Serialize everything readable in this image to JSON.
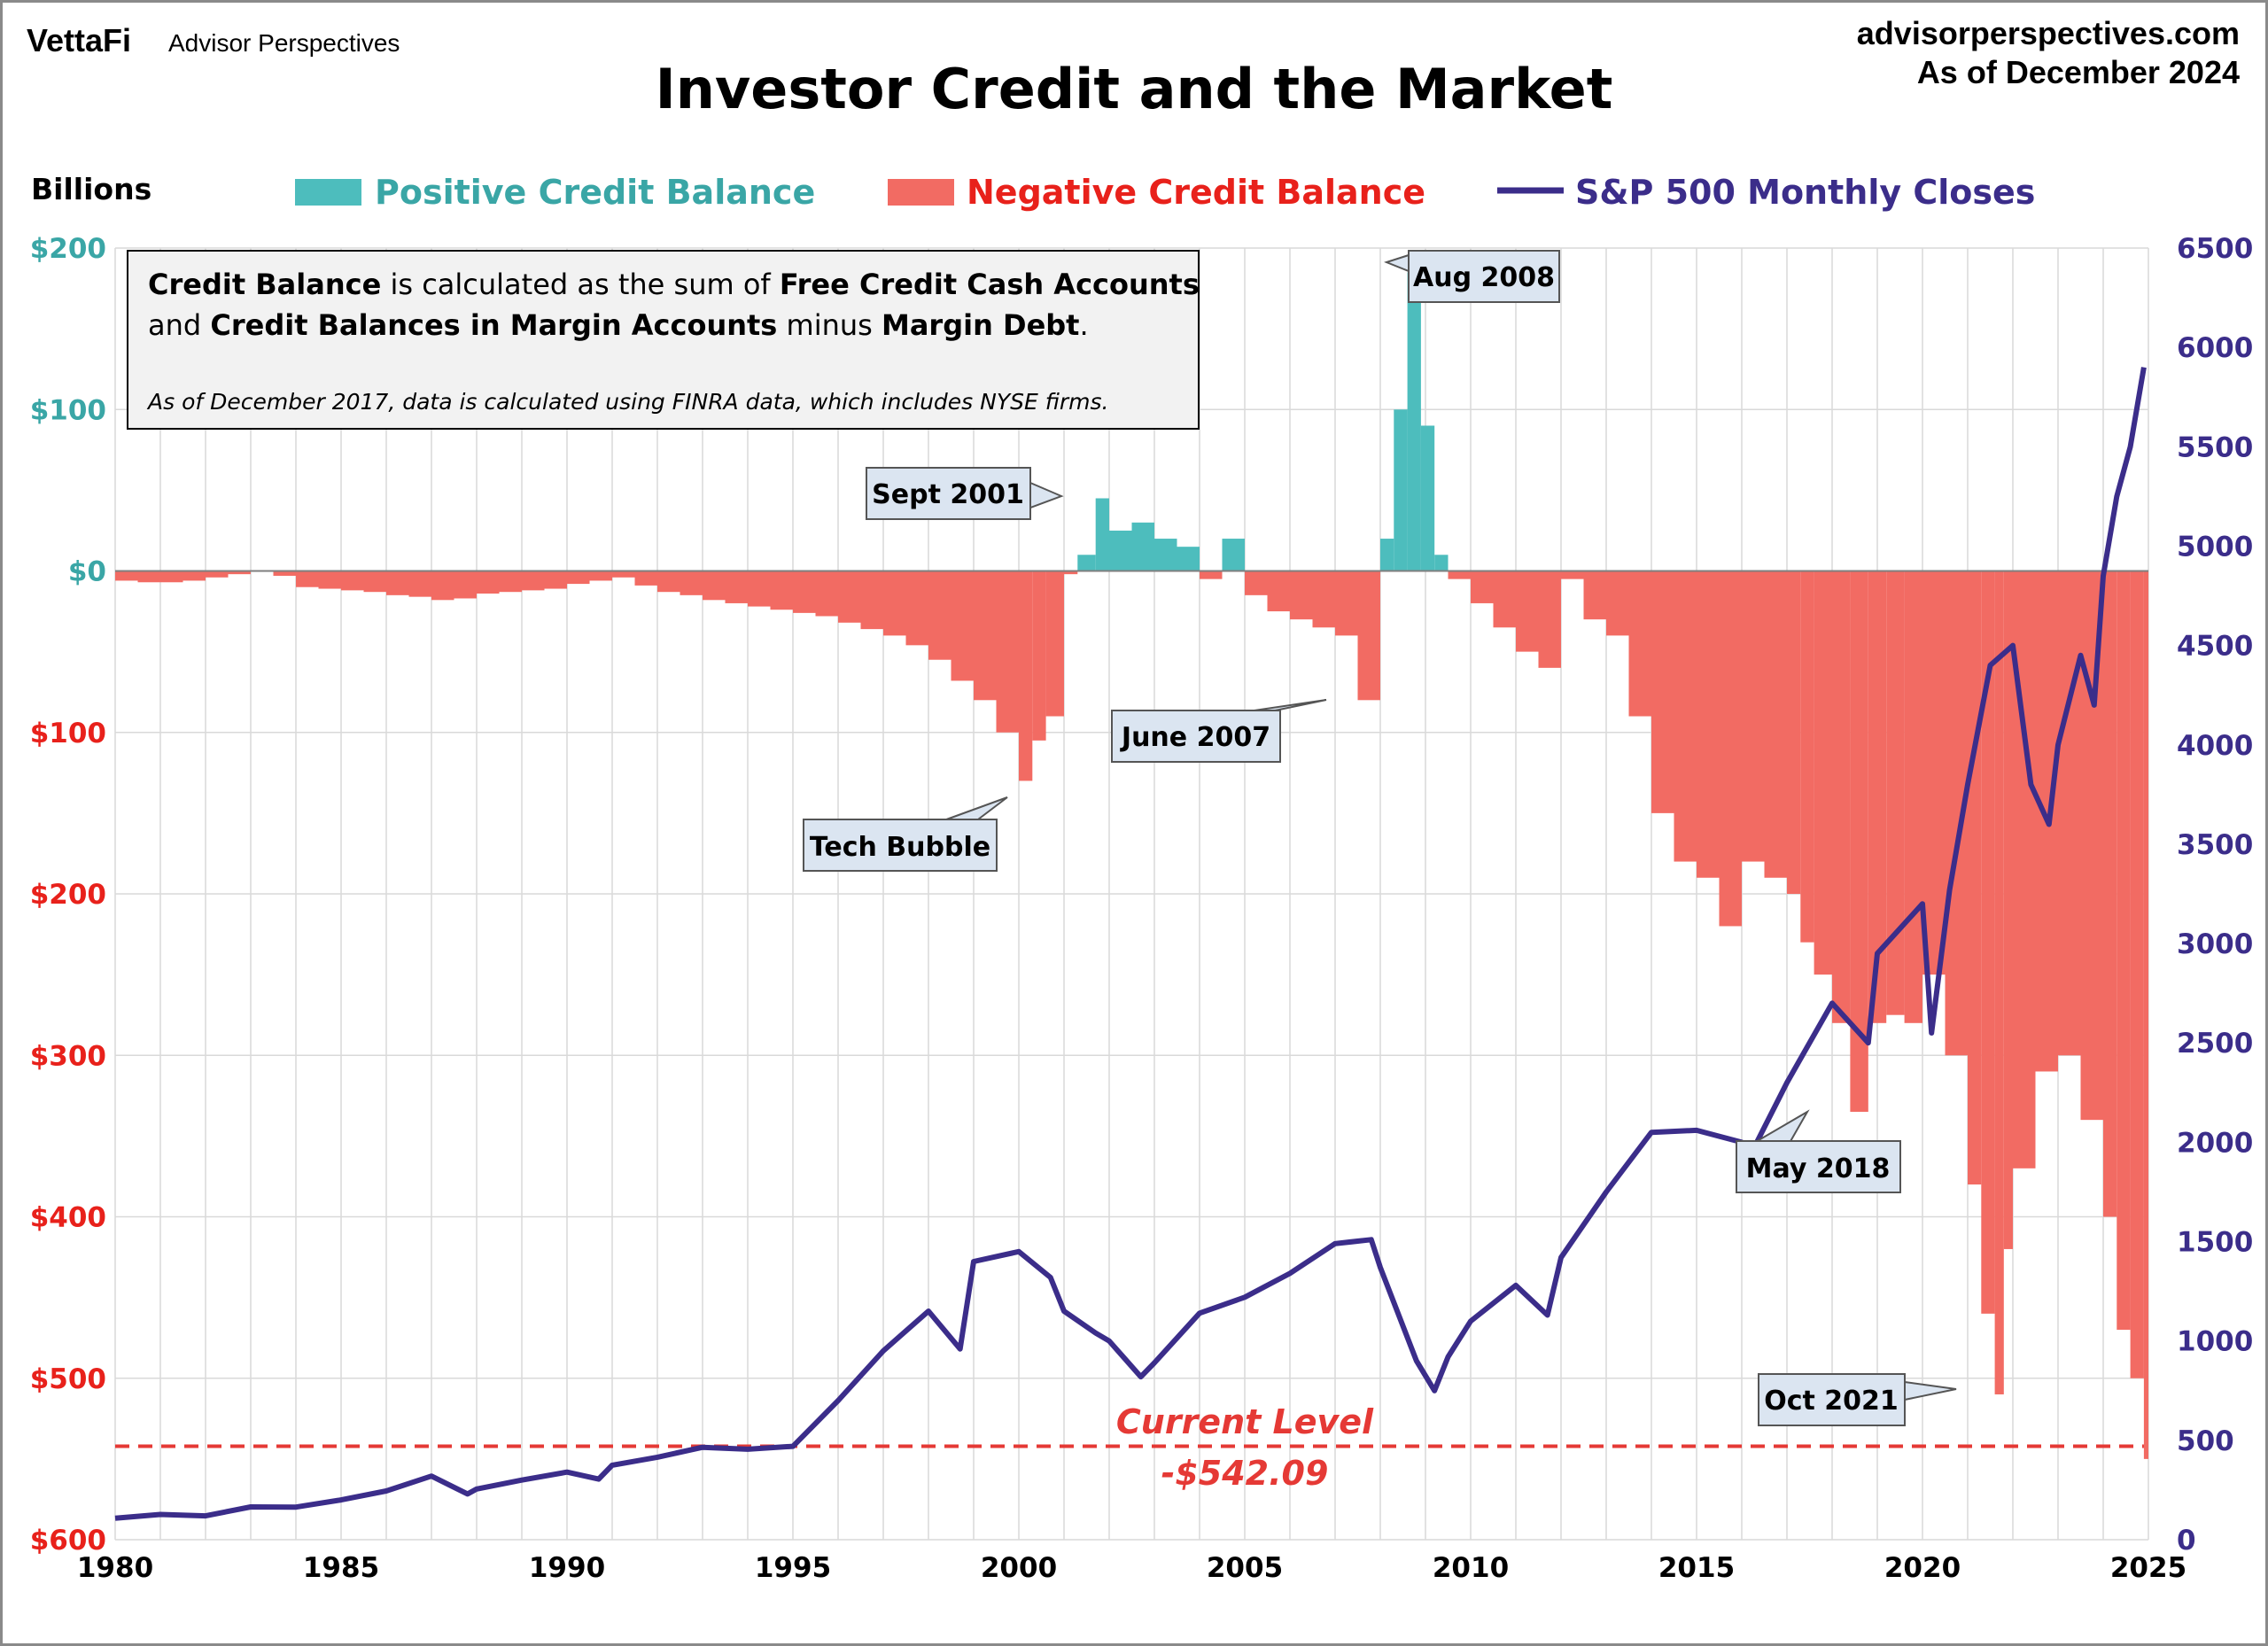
{
  "header": {
    "brand_left": "VettaFi",
    "brand_right": "Advisor Perspectives",
    "site": "advisorperspectives.com",
    "as_of": "As of December 2024"
  },
  "colors": {
    "positive": "#4dbdbd",
    "negative": "#f26b63",
    "sp500": "#3b2d8a",
    "left_axis_positive": "#3aa6a6",
    "left_axis_negative": "#e8211b",
    "current_level": "#e53935"
  },
  "info_box": {
    "line1_bold1": "Credit Balance",
    "line1_rest1": " is calculated as the sum of ",
    "line1_bold2": "Free Credit Cash Accounts",
    "line2_pre": "and ",
    "line2_bold1": "Credit Balances in Margin Accounts",
    "line2_mid": " minus ",
    "line2_bold2": "Margin Debt",
    "line2_end": ".",
    "note": "As of December 2017, data is calculated using FINRA data, which includes NYSE firms."
  },
  "annotations": [
    {
      "key": "aug2008",
      "label": "Aug 2008",
      "x": 2008.6,
      "y": 190
    },
    {
      "key": "sept2001",
      "label": "Sept 2001",
      "x": 2001.7,
      "y": 45
    },
    {
      "key": "june2007",
      "label": "June 2007",
      "x": 2007.5,
      "y": -80
    },
    {
      "key": "techbubble",
      "label": "Tech Bubble",
      "x": 2000.2,
      "y": -130
    },
    {
      "key": "may2018",
      "label": "May 2018",
      "x": 2018.4,
      "y": -335
    },
    {
      "key": "oct2021",
      "label": "Oct 2021",
      "x": 2021.8,
      "y": -510
    }
  ],
  "current_level": {
    "label": "Current Level",
    "value_label": "-$542.09",
    "value": -542.09
  },
  "chart_data": {
    "type": "bar",
    "title": "Investor Credit and the Market",
    "ylabel": "Billions",
    "x_range": [
      1980,
      2025
    ],
    "ylim_left": [
      -600,
      200
    ],
    "ylim_right": [
      0,
      6500
    ],
    "x_ticks": [
      "1980",
      "1985",
      "1990",
      "1995",
      "2000",
      "2005",
      "2010",
      "2015",
      "2020",
      "2025"
    ],
    "left_ticks": [
      {
        "v": 200,
        "label": "$200"
      },
      {
        "v": 100,
        "label": "$100"
      },
      {
        "v": 0,
        "label": "$0"
      },
      {
        "v": -100,
        "label": "$100"
      },
      {
        "v": -200,
        "label": "$200"
      },
      {
        "v": -300,
        "label": "$300"
      },
      {
        "v": -400,
        "label": "$400"
      },
      {
        "v": -500,
        "label": "$500"
      },
      {
        "v": -600,
        "label": "$600"
      }
    ],
    "right_ticks": [
      "6500",
      "6000",
      "5500",
      "5000",
      "4500",
      "4000",
      "3500",
      "3000",
      "2500",
      "2000",
      "1500",
      "1000",
      "500",
      "0"
    ],
    "legend": [
      "Positive Credit Balance",
      "Negative Credit Balance",
      "S&P 500 Monthly Closes"
    ],
    "grid": true,
    "series": [
      {
        "name": "Credit Balance",
        "axis": "left",
        "kind": "bar",
        "x": [
          1980,
          1980.5,
          1981,
          1981.5,
          1982,
          1982.5,
          1983,
          1983.5,
          1984,
          1984.5,
          1985,
          1985.5,
          1986,
          1986.5,
          1987,
          1987.5,
          1988,
          1988.5,
          1989,
          1989.5,
          1990,
          1990.5,
          1991,
          1991.5,
          1992,
          1992.5,
          1993,
          1993.5,
          1994,
          1994.5,
          1995,
          1995.5,
          1996,
          1996.5,
          1997,
          1997.5,
          1998,
          1998.5,
          1999,
          1999.5,
          2000,
          2000.3,
          2000.6,
          2001,
          2001.3,
          2001.7,
          2002,
          2002.5,
          2003,
          2003.5,
          2004,
          2004.5,
          2005,
          2005.5,
          2006,
          2006.5,
          2007,
          2007.5,
          2008,
          2008.3,
          2008.6,
          2008.9,
          2009.2,
          2009.5,
          2010,
          2010.5,
          2011,
          2011.5,
          2012,
          2012.5,
          2013,
          2013.5,
          2014,
          2014.5,
          2015,
          2015.5,
          2016,
          2016.5,
          2017,
          2017.3,
          2017.6,
          2018,
          2018.4,
          2018.8,
          2019.2,
          2019.6,
          2020,
          2020.5,
          2021,
          2021.3,
          2021.6,
          2021.8,
          2022,
          2022.5,
          2023,
          2023.5,
          2024,
          2024.3,
          2024.6,
          2024.9
        ],
        "values": [
          -6,
          -7,
          -7,
          -6,
          -4,
          -2,
          0,
          -3,
          -10,
          -11,
          -12,
          -13,
          -15,
          -16,
          -18,
          -17,
          -14,
          -13,
          -12,
          -11,
          -8,
          -6,
          -4,
          -9,
          -13,
          -15,
          -18,
          -20,
          -22,
          -24,
          -26,
          -28,
          -32,
          -36,
          -40,
          -46,
          -55,
          -68,
          -80,
          -100,
          -130,
          -105,
          -90,
          -2,
          10,
          45,
          25,
          30,
          20,
          15,
          -5,
          20,
          -15,
          -25,
          -30,
          -35,
          -40,
          -80,
          20,
          100,
          185,
          90,
          10,
          -5,
          -20,
          -35,
          -50,
          -60,
          -5,
          -30,
          -40,
          -90,
          -150,
          -180,
          -190,
          -220,
          -180,
          -190,
          -200,
          -230,
          -250,
          -280,
          -335,
          -280,
          -275,
          -280,
          -250,
          -300,
          -380,
          -460,
          -510,
          -420,
          -370,
          -310,
          -300,
          -340,
          -400,
          -470,
          -500,
          -550
        ]
      },
      {
        "name": "S&P 500 Monthly Closes",
        "axis": "right",
        "kind": "line",
        "x": [
          1980,
          1981,
          1982,
          1983,
          1984,
          1985,
          1986,
          1987,
          1987.8,
          1988,
          1989,
          1990,
          1990.7,
          1991,
          1992,
          1993,
          1994,
          1995,
          1996,
          1997,
          1998,
          1998.7,
          1999,
          2000,
          2000.7,
          2001,
          2001.7,
          2002,
          2002.7,
          2003,
          2004,
          2005,
          2006,
          2007,
          2007.8,
          2008,
          2008.8,
          2009.2,
          2009.5,
          2010,
          2011,
          2011.7,
          2012,
          2013,
          2014,
          2015,
          2016,
          2016.2,
          2017,
          2018,
          2018.8,
          2019,
          2020,
          2020.2,
          2020.6,
          2021,
          2021.5,
          2022,
          2022.4,
          2022.8,
          2023,
          2023.5,
          2023.8,
          2024,
          2024.3,
          2024.6,
          2024.9
        ],
        "values": [
          108,
          127,
          120,
          165,
          164,
          200,
          245,
          320,
          230,
          255,
          300,
          340,
          305,
          375,
          415,
          465,
          455,
          470,
          700,
          950,
          1150,
          960,
          1400,
          1450,
          1320,
          1150,
          1040,
          1000,
          820,
          890,
          1140,
          1220,
          1340,
          1490,
          1510,
          1370,
          900,
          750,
          920,
          1100,
          1280,
          1130,
          1420,
          1750,
          2050,
          2060,
          2000,
          1940,
          2300,
          2700,
          2500,
          2950,
          3200,
          2550,
          3270,
          3800,
          4400,
          4500,
          3800,
          3600,
          4000,
          4450,
          4200,
          4850,
          5250,
          5500,
          5900
        ]
      }
    ]
  }
}
